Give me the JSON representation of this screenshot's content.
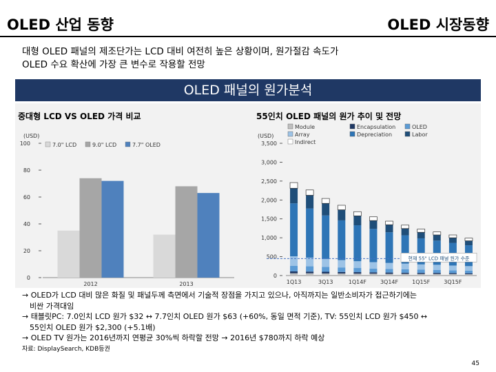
{
  "header": {
    "left_title": "OLED 산업 동향",
    "right_title": "OLED 시장동향"
  },
  "subtitle": {
    "line1": "대형 OLED 패널의 제조단가는 LCD 대비 여전히 높은 상황이며, 원가절감 속도가",
    "line2": "OLED 수요 확산에 가장 큰 변수로 작용할 전망"
  },
  "banner": "OLED 패널의 원가분석",
  "chart_data": [
    {
      "type": "bar",
      "title": "중대형 LCD VS OLED 가격 비교",
      "unit_label": "(USD)",
      "categories": [
        "2012",
        "2013"
      ],
      "series": [
        {
          "name": "7.0\" LCD",
          "color": "#d9d9d9",
          "values": [
            35,
            32
          ]
        },
        {
          "name": "9.0\" LCD",
          "color": "#a6a6a6",
          "values": [
            74,
            68
          ]
        },
        {
          "name": "7.7\" OLED",
          "color": "#4f81bd",
          "values": [
            72,
            63
          ]
        }
      ],
      "ylim": [
        0,
        100
      ],
      "yticks": [
        0,
        20,
        40,
        60,
        80,
        100
      ]
    },
    {
      "type": "bar",
      "stacked": true,
      "title": "55인치 OLED 패널의 원가 추이 및 전망",
      "unit_label": "(USD)",
      "categories": [
        "1Q13",
        "2Q13",
        "3Q13",
        "4Q13",
        "1Q14F",
        "2Q14F",
        "3Q14F",
        "4Q14F",
        "1Q15F",
        "2Q15F",
        "3Q15F",
        "4Q15F"
      ],
      "x_tick_labels": [
        "1Q13",
        "3Q13",
        "1Q14F",
        "3Q14F",
        "1Q15F",
        "3Q15F"
      ],
      "series": [
        {
          "name": "Module",
          "color": "#bfbfbf",
          "values": [
            60,
            60,
            55,
            55,
            50,
            50,
            45,
            45,
            40,
            40,
            40,
            35
          ]
        },
        {
          "name": "Encapsulation",
          "color": "#1f3864",
          "values": [
            50,
            45,
            45,
            40,
            40,
            35,
            35,
            30,
            30,
            30,
            25,
            25
          ]
        },
        {
          "name": "OLED",
          "color": "#5b9bd5",
          "values": [
            150,
            140,
            130,
            120,
            110,
            100,
            95,
            90,
            85,
            80,
            75,
            70
          ]
        },
        {
          "name": "Array",
          "color": "#9dc3e6",
          "values": [
            250,
            230,
            210,
            195,
            180,
            170,
            160,
            150,
            140,
            135,
            125,
            120
          ]
        },
        {
          "name": "Depreciation",
          "color": "#2e75b6",
          "values": [
            1400,
            1300,
            1150,
            1050,
            950,
            880,
            810,
            750,
            690,
            640,
            600,
            550
          ]
        },
        {
          "name": "Labor",
          "color": "#1f4e79",
          "values": [
            400,
            350,
            320,
            280,
            250,
            220,
            200,
            180,
            160,
            150,
            135,
            120
          ]
        },
        {
          "name": "Indirect",
          "color": "#ffffff",
          "values": [
            150,
            140,
            130,
            120,
            110,
            100,
            95,
            90,
            85,
            80,
            75,
            70
          ]
        }
      ],
      "ylim": [
        0,
        3500
      ],
      "yticks": [
        0,
        500,
        1000,
        1500,
        2000,
        2500,
        3000,
        3500
      ],
      "reference_line": {
        "value": 450,
        "label": "현재 55\" LCD 패널 원가 수준"
      }
    }
  ],
  "notes": {
    "line1": "→ OLED가 LCD 대비 많은 화질 및 패널두께 측면에서 기술적 장점을 가지고 있으나, 아직까지는 일반소비자가 접근하기에는",
    "line2": "비싼 가격대임",
    "line3": "→ 태블릿PC: 7.0인치 LCD 원가 $32 ↔ 7.7인치 OLED 원가 $63 (+60%, 동일 면적 기준), TV: 55인치 LCD 원가 $450 ↔",
    "line4": "55인치 OLED 원가 $2,300 (+5.1배)",
    "line5": "→ OLED TV 원가는 2016년까지 연평균 30%씩 하락할 전망 → 2016년 $780까지 하락 예상"
  },
  "source": "자료: DisplaySearch, KDB등권",
  "page_number": "45"
}
